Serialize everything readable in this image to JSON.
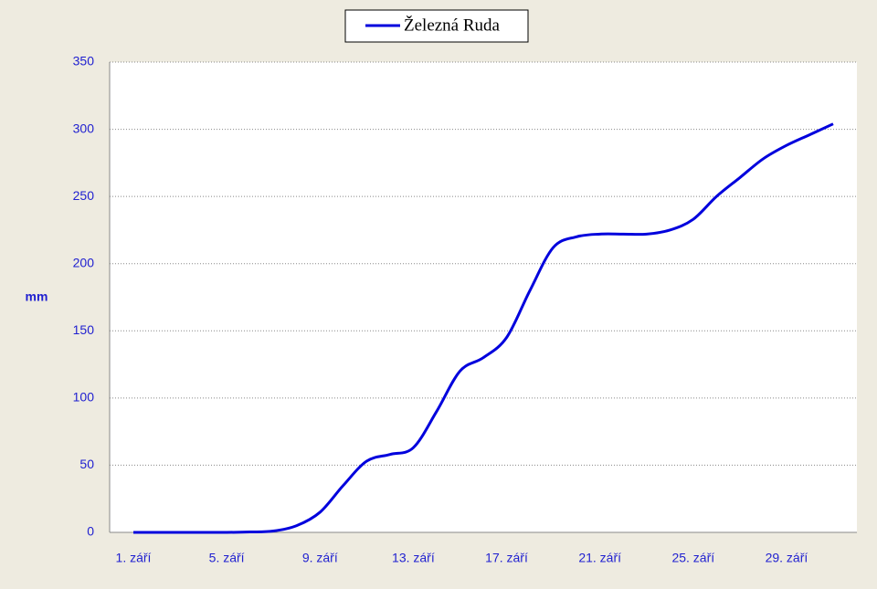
{
  "chart_data": {
    "type": "line",
    "y_label": "mm",
    "categories": [
      "1. září",
      null,
      null,
      null,
      "5. září",
      null,
      null,
      null,
      "9. září",
      null,
      null,
      null,
      "13. září",
      null,
      null,
      null,
      "17. září",
      null,
      null,
      null,
      "21. září",
      null,
      null,
      null,
      "25. září",
      null,
      null,
      null,
      "29. září",
      null,
      null
    ],
    "series": [
      {
        "name": "Železná Ruda",
        "color": "#0000dd",
        "values": [
          0,
          0,
          0,
          0,
          0,
          0.3,
          1,
          5,
          15,
          35,
          53,
          58,
          63,
          90,
          120,
          130,
          145,
          180,
          212,
          220,
          222,
          222,
          222,
          225,
          233,
          250,
          264,
          278,
          288,
          296,
          304
        ]
      }
    ],
    "ylim": [
      0,
      350
    ],
    "yticks": [
      0,
      50,
      100,
      150,
      200,
      250,
      300,
      350
    ],
    "grid": true,
    "legend": "top"
  }
}
